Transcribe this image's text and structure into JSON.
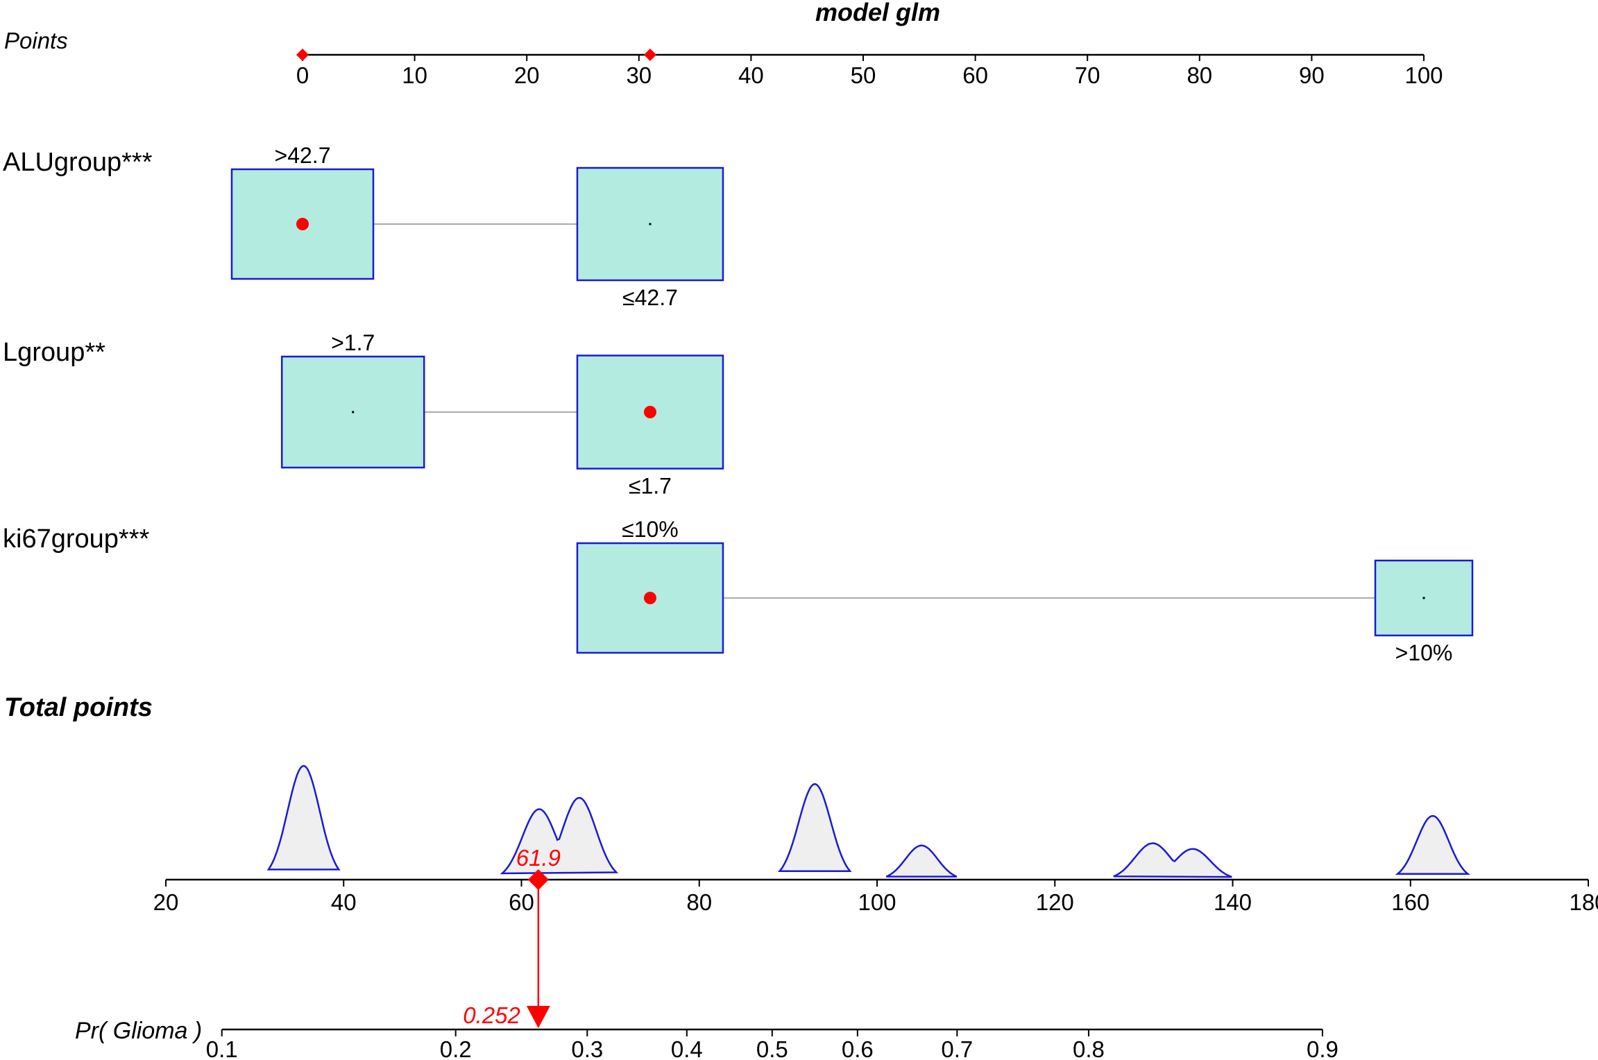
{
  "chart_data": {
    "type": "nomogram",
    "title": "model glm",
    "points_axis": {
      "label": "Points",
      "range": [
        0,
        100
      ],
      "ticks": [
        0,
        10,
        20,
        30,
        40,
        50,
        60,
        70,
        80,
        90,
        100
      ],
      "markers": [
        0,
        31
      ]
    },
    "variables": [
      {
        "label": "ALUgroup***",
        "levels": [
          {
            "name": ">42.7",
            "points": 0,
            "label_pos": "above",
            "selected": true
          },
          {
            "name": "≤42.7",
            "points": 31,
            "label_pos": "below",
            "selected": false
          }
        ]
      },
      {
        "label": "Lgroup**",
        "levels": [
          {
            "name": ">1.7",
            "points": 4.5,
            "label_pos": "above",
            "selected": false
          },
          {
            "name": "≤1.7",
            "points": 31,
            "label_pos": "below",
            "selected": true
          }
        ]
      },
      {
        "label": "ki67group***",
        "levels": [
          {
            "name": "≤10%",
            "points": 31,
            "label_pos": "above",
            "selected": true
          },
          {
            "name": ">10%",
            "points": 100,
            "label_pos": "below",
            "selected": false
          }
        ]
      }
    ],
    "total_points": {
      "label": "Total points",
      "range": [
        20,
        180
      ],
      "ticks": [
        20,
        40,
        60,
        80,
        100,
        120,
        140,
        160,
        180
      ],
      "value": 61.9,
      "value_label": "61.9",
      "density": [
        {
          "peaks": [
            {
              "center": 35.5,
              "height": 1.0,
              "width": 1.8
            }
          ]
        },
        {
          "peaks": [
            {
              "center": 62.0,
              "height": 0.62,
              "width": 1.9
            },
            {
              "center": 66.5,
              "height": 0.72,
              "width": 1.9
            }
          ]
        },
        {
          "peaks": [
            {
              "center": 93.0,
              "height": 0.84,
              "width": 1.8
            }
          ]
        },
        {
          "peaks": [
            {
              "center": 105.0,
              "height": 0.3,
              "width": 1.8
            }
          ]
        },
        {
          "peaks": [
            {
              "center": 131.0,
              "height": 0.32,
              "width": 2.0
            },
            {
              "center": 135.5,
              "height": 0.27,
              "width": 2.0
            }
          ]
        },
        {
          "peaks": [
            {
              "center": 162.5,
              "height": 0.56,
              "width": 1.8
            }
          ]
        }
      ]
    },
    "probability_axis": {
      "label": "Pr( Glioma )",
      "ticks": [
        0.1,
        0.2,
        0.3,
        0.4,
        0.5,
        0.6,
        0.7,
        0.8,
        0.9
      ],
      "total_points_at_ticks": [
        26.3,
        52.6,
        67.4,
        78.6,
        88.2,
        97.8,
        109.0,
        123.8,
        150.1
      ],
      "value": 0.252,
      "value_label": "0.252"
    },
    "colors": {
      "box_fill": "#b3ebe1",
      "box_stroke": "#1a1ad6",
      "marker": "#ff0000",
      "density_fill": "#efefef",
      "density_stroke": "#1a1ad6",
      "connector": "#aaaaaa",
      "axis": "#000000"
    }
  }
}
